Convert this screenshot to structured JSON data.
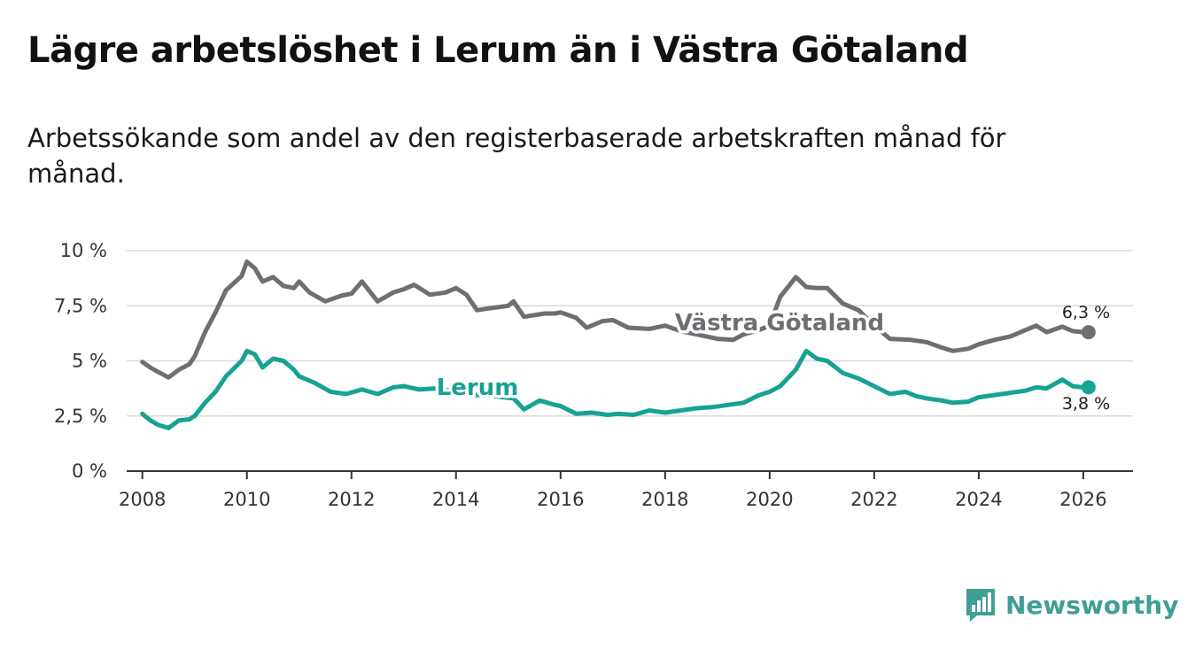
{
  "header": {
    "title": "Lägre arbetslöshet i Lerum än i Västra Götaland",
    "subtitle": "Arbetssökande som andel av den registerbaserade arbetskraften månad för månad."
  },
  "brand": {
    "name": "Newsworthy",
    "icon": "newsworthy-logo-icon",
    "color": "#3f9e95"
  },
  "chart_data": {
    "type": "line",
    "title": "Lägre arbetslöshet i Lerum än i Västra Götaland",
    "subtitle": "Arbetssökande som andel av den registerbaserade arbetskraften månad för månad.",
    "xlabel": "",
    "ylabel": "",
    "xlim": [
      2007.7,
      2026.95
    ],
    "ylim": [
      0,
      10
    ],
    "grid": true,
    "legend": "inline labels",
    "x_ticks": [
      2008,
      2010,
      2012,
      2014,
      2016,
      2018,
      2020,
      2022,
      2024,
      2026
    ],
    "x_tick_labels": [
      "2008",
      "2010",
      "2012",
      "2014",
      "2016",
      "2018",
      "2020",
      "2022",
      "2024",
      "2026"
    ],
    "y_ticks": [
      0,
      2.5,
      5,
      7.5,
      10
    ],
    "y_tick_labels": [
      "0 %",
      "2,5 %",
      "5 %",
      "7,5 %",
      "10 %"
    ],
    "series": [
      {
        "name": "Västra Götaland",
        "color": "#6e6e73",
        "end_label": "6,3 %",
        "x": [
          2008.0,
          2008.15,
          2008.3,
          2008.5,
          2008.7,
          2008.9,
          2009.0,
          2009.2,
          2009.4,
          2009.6,
          2009.9,
          2010.0,
          2010.15,
          2010.3,
          2010.5,
          2010.7,
          2010.9,
          2011.0,
          2011.2,
          2011.5,
          2011.8,
          2012.0,
          2012.2,
          2012.5,
          2012.8,
          2013.0,
          2013.2,
          2013.5,
          2013.8,
          2014.0,
          2014.2,
          2014.4,
          2014.7,
          2015.0,
          2015.1,
          2015.3,
          2015.7,
          2015.9,
          2016.0,
          2016.3,
          2016.5,
          2016.8,
          2017.0,
          2017.3,
          2017.7,
          2018.0,
          2018.3,
          2018.6,
          2019.0,
          2019.3,
          2019.5,
          2019.8,
          2020.0,
          2020.2,
          2020.5,
          2020.7,
          2020.9,
          2021.1,
          2021.4,
          2021.7,
          2022.0,
          2022.3,
          2022.7,
          2023.0,
          2023.3,
          2023.5,
          2023.8,
          2024.0,
          2024.3,
          2024.6,
          2024.9,
          2025.1,
          2025.3,
          2025.6,
          2025.8,
          2026.0,
          2026.1
        ],
        "y": [
          4.95,
          4.7,
          4.5,
          4.25,
          4.6,
          4.85,
          5.2,
          6.3,
          7.2,
          8.2,
          8.85,
          9.5,
          9.2,
          8.6,
          8.8,
          8.4,
          8.3,
          8.6,
          8.1,
          7.7,
          7.95,
          8.05,
          8.6,
          7.7,
          8.1,
          8.25,
          8.45,
          8.0,
          8.1,
          8.3,
          8.0,
          7.3,
          7.4,
          7.5,
          7.7,
          7.0,
          7.15,
          7.15,
          7.2,
          6.95,
          6.5,
          6.8,
          6.85,
          6.5,
          6.45,
          6.6,
          6.35,
          6.2,
          6.0,
          5.95,
          6.2,
          6.4,
          6.6,
          7.9,
          8.8,
          8.35,
          8.3,
          8.3,
          7.6,
          7.3,
          6.6,
          6.0,
          5.95,
          5.85,
          5.6,
          5.45,
          5.55,
          5.75,
          5.95,
          6.1,
          6.4,
          6.6,
          6.3,
          6.55,
          6.35,
          6.3,
          6.3
        ]
      },
      {
        "name": "Lerum",
        "color": "#17a293",
        "end_label": "3,8 %",
        "x": [
          2008.0,
          2008.15,
          2008.3,
          2008.5,
          2008.7,
          2008.9,
          2009.0,
          2009.2,
          2009.4,
          2009.6,
          2009.9,
          2010.0,
          2010.15,
          2010.3,
          2010.5,
          2010.7,
          2010.9,
          2011.0,
          2011.3,
          2011.6,
          2011.9,
          2012.2,
          2012.5,
          2012.8,
          2013.0,
          2013.3,
          2013.6,
          2013.9,
          2014.0,
          2014.3,
          2014.6,
          2014.9,
          2015.1,
          2015.3,
          2015.6,
          2015.9,
          2016.0,
          2016.3,
          2016.6,
          2016.9,
          2017.1,
          2017.4,
          2017.7,
          2018.0,
          2018.3,
          2018.6,
          2018.9,
          2019.2,
          2019.5,
          2019.8,
          2020.0,
          2020.2,
          2020.5,
          2020.7,
          2020.9,
          2021.1,
          2021.4,
          2021.7,
          2022.0,
          2022.3,
          2022.6,
          2022.8,
          2023.0,
          2023.3,
          2023.5,
          2023.8,
          2024.0,
          2024.3,
          2024.6,
          2024.9,
          2025.1,
          2025.3,
          2025.6,
          2025.8,
          2026.0,
          2026.1
        ],
        "y": [
          2.6,
          2.3,
          2.1,
          1.95,
          2.3,
          2.35,
          2.5,
          3.1,
          3.6,
          4.3,
          5.0,
          5.45,
          5.3,
          4.7,
          5.1,
          5.0,
          4.6,
          4.3,
          4.0,
          3.6,
          3.5,
          3.7,
          3.5,
          3.8,
          3.85,
          3.7,
          3.75,
          3.65,
          3.5,
          3.45,
          3.45,
          3.35,
          3.3,
          2.8,
          3.2,
          3.0,
          2.95,
          2.6,
          2.65,
          2.55,
          2.6,
          2.55,
          2.75,
          2.65,
          2.75,
          2.85,
          2.9,
          3.0,
          3.1,
          3.45,
          3.6,
          3.85,
          4.6,
          5.45,
          5.1,
          5.0,
          4.45,
          4.2,
          3.85,
          3.5,
          3.6,
          3.4,
          3.3,
          3.2,
          3.1,
          3.15,
          3.35,
          3.45,
          3.55,
          3.65,
          3.8,
          3.75,
          4.15,
          3.85,
          3.8,
          3.8
        ]
      }
    ],
    "annotations": [
      "Västra Götaland",
      "Lerum",
      "6,3 %",
      "3,8 %"
    ]
  }
}
